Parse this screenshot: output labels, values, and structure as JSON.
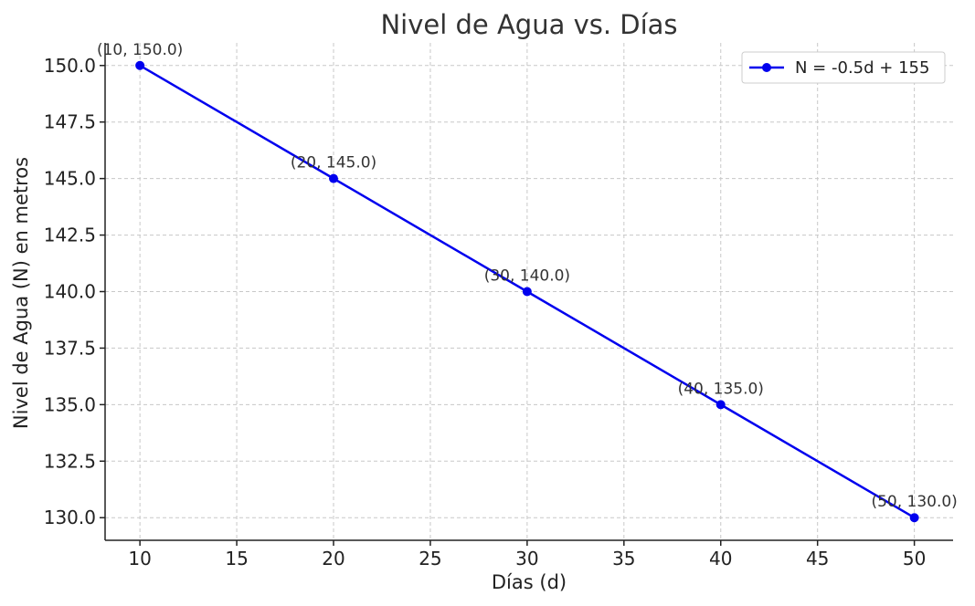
{
  "chart_data": {
    "type": "line",
    "title": "Nivel de Agua vs. Días",
    "xlabel": "Días (d)",
    "ylabel": "Nivel de Agua (N) en metros",
    "xlim": [
      8.2,
      52.0
    ],
    "ylim": [
      129.0,
      151.0
    ],
    "xticks": [
      10,
      15,
      20,
      25,
      30,
      35,
      40,
      45,
      50
    ],
    "yticks": [
      130.0,
      132.5,
      135.0,
      137.5,
      140.0,
      142.5,
      145.0,
      147.5,
      150.0
    ],
    "grid": true,
    "legend_position": "top-right",
    "series": [
      {
        "name": "N = -0.5d + 155",
        "color": "#0000ee",
        "marker": "circle",
        "x": [
          10,
          20,
          30,
          40,
          50
        ],
        "y": [
          150.0,
          145.0,
          140.0,
          135.0,
          130.0
        ]
      }
    ],
    "annotations": [
      "(10, 150.0)",
      "(20, 145.0)",
      "(30, 140.0)",
      "(40, 135.0)",
      "(50, 130.0)"
    ]
  }
}
